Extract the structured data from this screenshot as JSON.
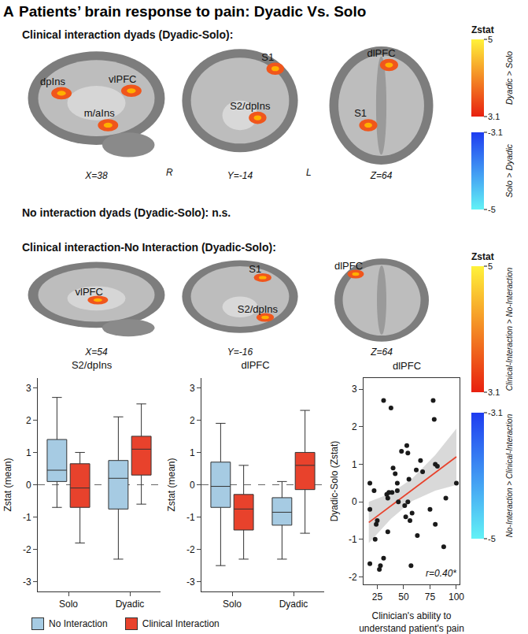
{
  "panel_label": "A",
  "title": "Patients’ brain response to pain: Dyadic Vs. Solo",
  "brain_rows": [
    {
      "heading": "Clinical interaction dyads (Dyadic-Solo):",
      "views": [
        {
          "labels": [
            "dpIns",
            "vlPFC",
            "m/aIns"
          ],
          "coordinate": "X=38"
        },
        {
          "labels": [
            "S1",
            "S2/dpIns"
          ],
          "coordinate": "Y=-14",
          "orientation_labels": [
            "R",
            "L"
          ]
        },
        {
          "labels": [
            "dlPFC",
            "S1"
          ],
          "coordinate": "Z=64"
        }
      ]
    },
    {
      "heading": "No interaction dyads (Dyadic-Solo): n.s.",
      "views": []
    },
    {
      "heading": "Clinical interaction-No Interaction (Dyadic-Solo):",
      "views": [
        {
          "labels": [
            "vlPFC"
          ],
          "coordinate": "X=54"
        },
        {
          "labels": [
            "S1",
            "S2/dpIns"
          ],
          "coordinate": "Y=-16"
        },
        {
          "labels": [
            "dlPFC"
          ],
          "coordinate": "Z=64"
        }
      ]
    }
  ],
  "colorbars": [
    {
      "title": "Zstat",
      "positive": {
        "range": [
          3.1,
          5
        ],
        "ticks": [
          3.1,
          5
        ],
        "label": "Dyadic > Solo"
      },
      "negative": {
        "range": [
          -5,
          -3.1
        ],
        "ticks": [
          -5,
          -3.1
        ],
        "label": "Solo > Dyadic"
      }
    },
    {
      "title": "Zstat",
      "positive": {
        "range": [
          3.1,
          5
        ],
        "ticks": [
          3.1,
          5
        ],
        "label": "Clinical-Interaction > No-Interaction"
      },
      "negative": {
        "range": [
          -5,
          -3.1
        ],
        "ticks": [
          -5,
          -3.1
        ],
        "label": "No-Interaction > Clinical-Interaction"
      }
    }
  ],
  "chart_data": [
    {
      "type": "box",
      "title": "S2/dpIns",
      "y_label": "Zstat (mean)",
      "categories": [
        "Solo",
        "Dyadic"
      ],
      "ylim": [
        -3.3,
        3.3
      ],
      "yticks": [
        -3,
        -2,
        -1,
        0,
        1,
        2,
        3
      ],
      "ref_line": 0,
      "grid": false,
      "legend": "bottom",
      "series": [
        {
          "name": "No Interaction",
          "color": "#a6cbe3",
          "lower_whisker": [
            -0.7,
            -2.3
          ],
          "q1": [
            0.1,
            -0.75
          ],
          "median": [
            0.45,
            0.2
          ],
          "q3": [
            1.4,
            0.75
          ],
          "upper_whisker": [
            2.7,
            2.1
          ]
        },
        {
          "name": "Clinical Interaction",
          "color": "#e8422c",
          "lower_whisker": [
            -1.8,
            -0.6
          ],
          "q1": [
            -0.7,
            0.3
          ],
          "median": [
            -0.1,
            1.1
          ],
          "q3": [
            0.65,
            1.5
          ],
          "upper_whisker": [
            1.0,
            2.5
          ]
        }
      ]
    },
    {
      "type": "box",
      "title": "dlPFC",
      "y_label": "Zstat (mean)",
      "categories": [
        "Solo",
        "Dyadic"
      ],
      "ylim": [
        -3.3,
        3.3
      ],
      "yticks": [
        -3,
        -2,
        -1,
        0,
        1,
        2,
        3
      ],
      "ref_line": 0,
      "grid": false,
      "legend": "bottom",
      "series": [
        {
          "name": "No Interaction",
          "color": "#a6cbe3",
          "lower_whisker": [
            -2.5,
            -2.3
          ],
          "q1": [
            -0.7,
            -1.25
          ],
          "median": [
            -0.05,
            -0.85
          ],
          "q3": [
            0.7,
            -0.4
          ],
          "upper_whisker": [
            1.9,
            0.1
          ]
        },
        {
          "name": "Clinical Interaction",
          "color": "#e8422c",
          "lower_whisker": [
            -2.3,
            -1.5
          ],
          "q1": [
            -1.4,
            -0.15
          ],
          "median": [
            -0.75,
            0.6
          ],
          "q3": [
            -0.3,
            1.0
          ],
          "upper_whisker": [
            0.6,
            2.3
          ]
        }
      ]
    },
    {
      "type": "scatter",
      "title": "dlPFC",
      "x_label": "Clinician's ability to\nunderstand patient's pain",
      "y_label": "Dyadic-Solo (Zstat)",
      "x": [
        18,
        18,
        18,
        22,
        23,
        24,
        25,
        27,
        28,
        31,
        31,
        34,
        35,
        35,
        36,
        38,
        39,
        40,
        42,
        44,
        44,
        45,
        48,
        51,
        52,
        53,
        54,
        54,
        55,
        56,
        57,
        58,
        62,
        63,
        66,
        68,
        75,
        78,
        79,
        80,
        80,
        82,
        88,
        90,
        100
      ],
      "y": [
        -0.2,
        0.5,
        -1.65,
        0.3,
        -1.0,
        -0.6,
        -0.5,
        -1.8,
        -1.7,
        -1.5,
        2.7,
        0.2,
        -0.8,
        0.1,
        0.25,
        2.5,
        0.25,
        0.9,
        0.75,
        0.5,
        0.3,
        0.0,
        1.35,
        -0.1,
        -0.4,
        1.5,
        1.3,
        0.0,
        0.6,
        -0.5,
        -1.7,
        -0.3,
        0.85,
        -0.9,
        1.1,
        0.8,
        -0.2,
        2.7,
        2.2,
        1.0,
        -0.6,
        0.95,
        -1.2,
        0.1,
        0.5
      ],
      "color": "#1a1a1a",
      "marker": "circle",
      "xlim": [
        12,
        103
      ],
      "xticks": [
        25,
        50,
        75,
        100
      ],
      "ylim": [
        -2.2,
        3.3
      ],
      "yticks": [
        -2,
        -1,
        0,
        1,
        2,
        3
      ],
      "grid": false,
      "fit": {
        "x": [
          17,
          38,
          58,
          80,
          100
        ],
        "y": [
          -0.55,
          -0.107,
          0.315,
          0.779,
          1.2
        ],
        "ci_lower": [
          -1.1,
          -0.45,
          0.02,
          0.3,
          0.45
        ],
        "ci_upper": [
          0.0,
          0.23,
          0.62,
          1.25,
          1.95
        ],
        "color": "#e8422c"
      },
      "annotation": "r=0.40*"
    }
  ]
}
